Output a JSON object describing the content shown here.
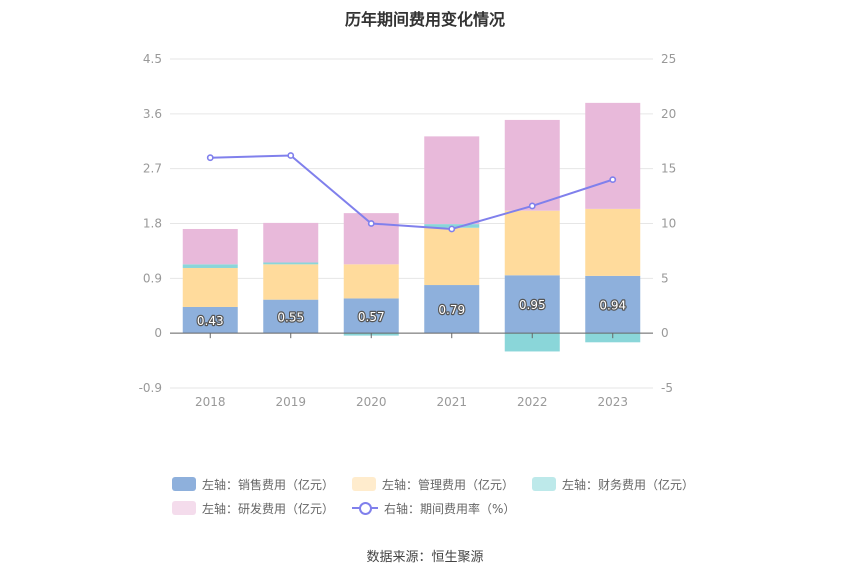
{
  "chart_data": {
    "type": "bar",
    "title": "历年期间费用变化情况",
    "categories": [
      "2018",
      "2019",
      "2020",
      "2021",
      "2022",
      "2023"
    ],
    "left_axis": {
      "min": -0.9,
      "max": 4.5,
      "ticks": [
        "4.5",
        "3.6",
        "2.7",
        "1.8",
        "0.9",
        "0",
        "-0.9"
      ]
    },
    "right_axis": {
      "min": -5,
      "max": 25,
      "ticks": [
        "25",
        "20",
        "15",
        "10",
        "5",
        "0",
        "-5"
      ]
    },
    "series": [
      {
        "name": "左轴：销售费用（亿元）",
        "axis": "left",
        "kind": "bar",
        "color": "#8eb0dc",
        "values": [
          0.43,
          0.55,
          0.57,
          0.79,
          0.95,
          0.94
        ],
        "labels": [
          "0.43",
          "0.55",
          "0.57",
          "0.79",
          "0.95",
          "0.94"
        ]
      },
      {
        "name": "左轴：管理费用（亿元）",
        "axis": "left",
        "kind": "bar",
        "color": "#ffdb9c",
        "values": [
          0.64,
          0.58,
          0.56,
          0.94,
          1.06,
          1.1
        ]
      },
      {
        "name": "左轴：财务费用（亿元）",
        "axis": "left",
        "kind": "bar",
        "color": "#8ad6d9",
        "values": [
          0.06,
          0.03,
          -0.04,
          0.06,
          -0.3,
          -0.15
        ]
      },
      {
        "name": "左轴：研发费用（亿元）",
        "axis": "left",
        "kind": "bar",
        "color": "#e8b9da",
        "values": [
          0.58,
          0.65,
          0.84,
          1.44,
          1.49,
          1.74
        ]
      },
      {
        "name": "右轴：期间费用率（%）",
        "axis": "right",
        "kind": "line",
        "color": "#8080ec",
        "values": [
          16.0,
          16.2,
          10.0,
          9.5,
          11.6,
          14.0
        ]
      }
    ],
    "grid": true,
    "legend_position": "bottom"
  },
  "source": "数据来源：恒生聚源"
}
